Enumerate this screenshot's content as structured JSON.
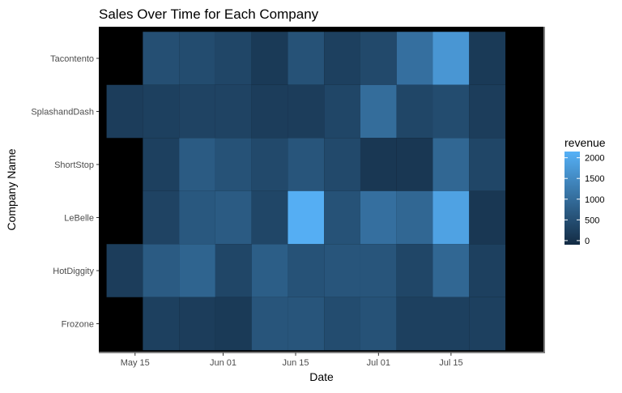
{
  "chart_data": {
    "type": "heatmap",
    "title": "Sales Over Time for Each Company",
    "xlabel": "Date",
    "ylabel": "Company Name",
    "x_ticks": [
      "May 15",
      "Jun 01",
      "Jun 15",
      "Jul 01",
      "Jul 15"
    ],
    "x_tick_dates": [
      "2019-05-15",
      "2019-06-01",
      "2019-06-15",
      "2019-07-01",
      "2019-07-15"
    ],
    "x_range": [
      "2019-05-08",
      "2019-08-02"
    ],
    "x": [
      "2019-05-13",
      "2019-05-20",
      "2019-05-27",
      "2019-06-03",
      "2019-06-10",
      "2019-06-17",
      "2019-06-24",
      "2019-07-01",
      "2019-07-08",
      "2019-07-15",
      "2019-07-22"
    ],
    "categories": [
      "Tacontento",
      "SplashandDash",
      "ShortStop",
      "LeBelle",
      "HotDiggity",
      "Frozone"
    ],
    "values": [
      [
        null,
        500,
        450,
        350,
        150,
        550,
        250,
        400,
        1050,
        1700,
        150
      ],
      [
        200,
        250,
        300,
        300,
        200,
        200,
        350,
        1000,
        350,
        450,
        200
      ],
      [
        null,
        250,
        700,
        550,
        400,
        600,
        400,
        100,
        100,
        900,
        350
      ],
      [
        null,
        300,
        650,
        700,
        350,
        2100,
        550,
        1050,
        900,
        1900,
        100
      ],
      [
        200,
        700,
        850,
        350,
        750,
        550,
        600,
        600,
        350,
        900,
        250
      ],
      [
        null,
        250,
        200,
        150,
        600,
        600,
        450,
        550,
        250,
        250,
        250
      ]
    ],
    "legend": {
      "title": "revenue",
      "ticks": [
        0,
        500,
        1000,
        1500,
        2000
      ],
      "labels": [
        "0",
        "500",
        "1000",
        "1500",
        "2000"
      ],
      "range": [
        -100,
        2150
      ],
      "placement": "right"
    },
    "colors": {
      "low": "#132B43",
      "high": "#56B1F7",
      "panel": "#000000",
      "tick_text": "#4d4d4d",
      "tick_mark": "#333333",
      "panel_border": "#7f7f7f"
    },
    "grid": false
  }
}
